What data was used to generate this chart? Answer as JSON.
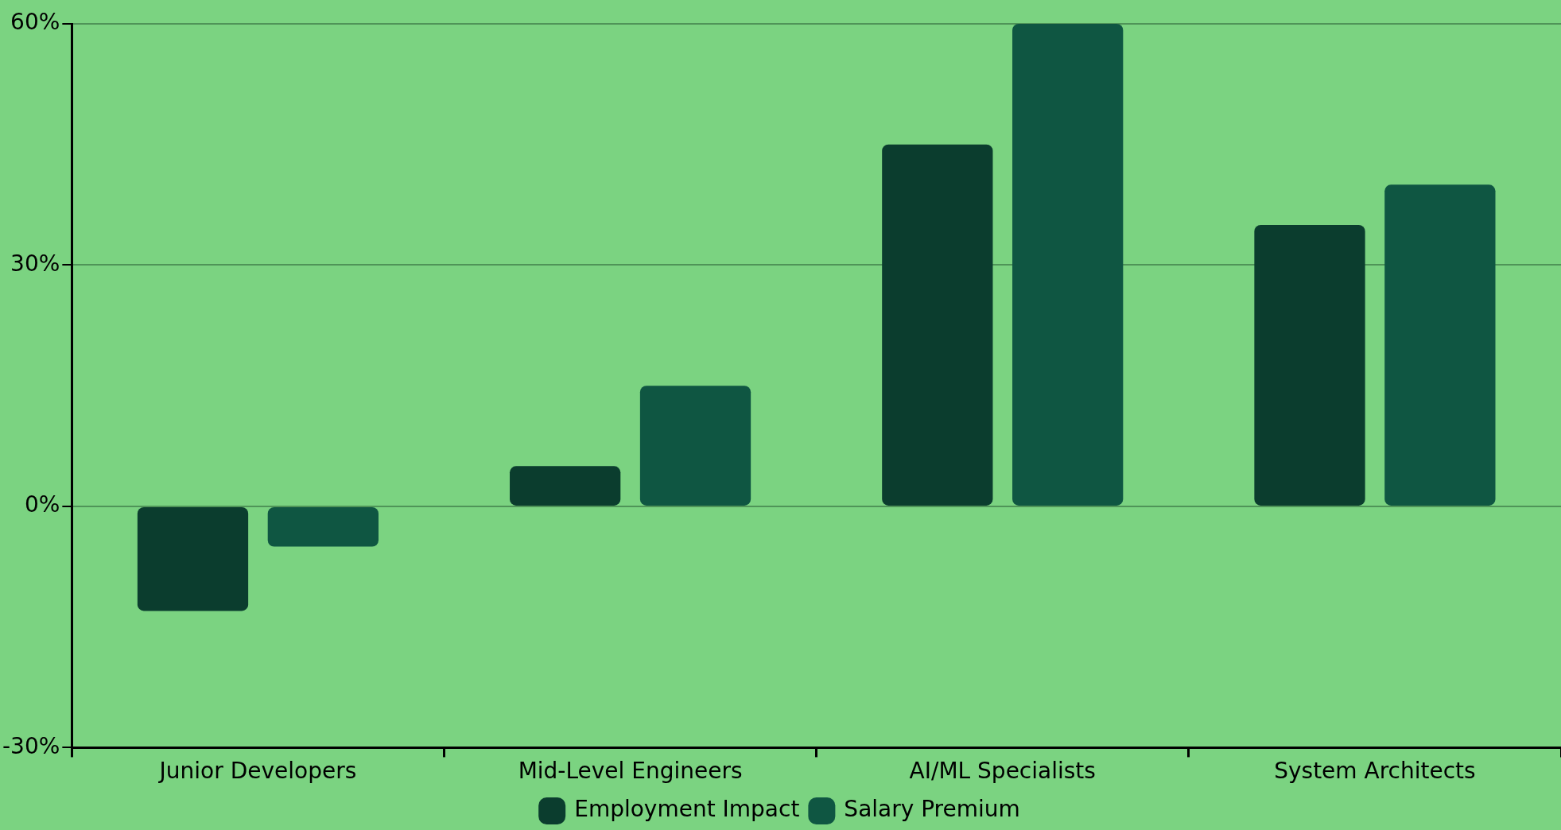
{
  "chart_data": {
    "type": "bar",
    "categories": [
      "Junior Developers",
      "Mid-Level Engineers",
      "AI/ML Specialists",
      "System Architects"
    ],
    "series": [
      {
        "name": "Employment Impact",
        "color": "#0b3d2e",
        "values": [
          -13,
          5,
          45,
          35
        ]
      },
      {
        "name": "Salary Premium",
        "color": "#0f5642",
        "values": [
          -5,
          15,
          60,
          40
        ]
      }
    ],
    "ylim": [
      -30,
      60
    ],
    "yticks": [
      {
        "value": -30,
        "label": "-30%"
      },
      {
        "value": 0,
        "label": "0%"
      },
      {
        "value": 30,
        "label": "30%"
      },
      {
        "value": 60,
        "label": "60%"
      }
    ],
    "grid": "y",
    "legend": "bottom"
  }
}
